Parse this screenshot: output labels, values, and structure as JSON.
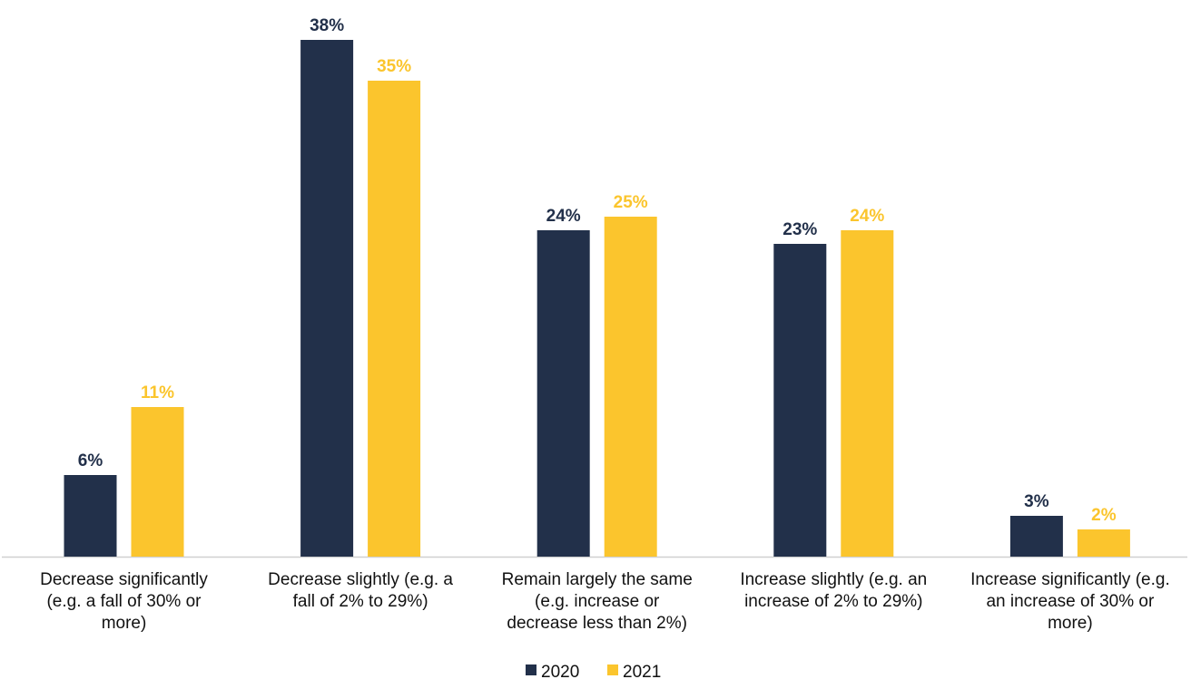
{
  "chart_data": {
    "type": "bar",
    "title": "",
    "xlabel": "",
    "ylabel": "",
    "ylim": [
      0,
      38
    ],
    "grid": false,
    "legend_position": "bottom",
    "categories": [
      [
        "Decrease significantly",
        "(e.g. a fall of 30% or",
        "more)"
      ],
      [
        "Decrease slightly (e.g. a",
        "fall of 2% to 29%)"
      ],
      [
        "Remain largely the same",
        "(e.g. increase or",
        "decrease less than 2%)"
      ],
      [
        "Increase slightly (e.g. an",
        "increase of 2% to 29%)"
      ],
      [
        "Increase significantly (e.g.",
        "an increase of 30% or",
        "more)"
      ]
    ],
    "series": [
      {
        "name": "2020",
        "color": "#22304a",
        "values": [
          6,
          38,
          24,
          23,
          3
        ],
        "labels": [
          "6%",
          "38%",
          "24%",
          "23%",
          "3%"
        ]
      },
      {
        "name": "2021",
        "color": "#fbc52d",
        "values": [
          11,
          35,
          25,
          24,
          2
        ],
        "labels": [
          "11%",
          "35%",
          "25%",
          "24%",
          "2%"
        ]
      }
    ]
  }
}
